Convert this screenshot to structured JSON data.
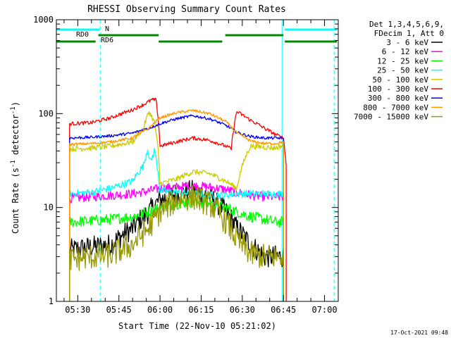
{
  "chart_data": {
    "type": "line",
    "title": "RHESSI Observing Summary Count Rates",
    "xlabel": "Start Time (22-Nov-10 05:21:02)",
    "ylabel_main": "Count Rate (s",
    "ylabel_sup1": "-1",
    "ylabel_mid": " detector",
    "ylabel_sup2": "-1",
    "ylabel_end": ")",
    "y_scale": "log",
    "ylim": [
      1,
      1000
    ],
    "yticks": [
      {
        "value": 1,
        "label": "1"
      },
      {
        "value": 10,
        "label": "10"
      },
      {
        "value": 100,
        "label": "100"
      },
      {
        "value": 1000,
        "label": "1000"
      }
    ],
    "xlim_minutes": [
      322.2,
      425.0
    ],
    "xticks": [
      {
        "value": 330,
        "label": "05:30"
      },
      {
        "value": 345,
        "label": "05:45"
      },
      {
        "value": 360,
        "label": "06:00"
      },
      {
        "value": 375,
        "label": "06:15"
      },
      {
        "value": 390,
        "label": "06:30"
      },
      {
        "value": 405,
        "label": "06:45"
      },
      {
        "value": 420,
        "label": "07:00"
      }
    ],
    "legend_title_lines": [
      "Det 1,3,4,5,6,9,",
      "FDecim 1, Att 0"
    ],
    "legend_position": "top-right outside",
    "series": [
      {
        "name": "3 - 6 keV",
        "color": "#000000",
        "x": [
          327,
          335,
          342,
          350,
          356,
          360,
          366,
          372,
          378,
          384,
          388,
          393,
          398,
          402,
          405
        ],
        "y": [
          3.5,
          3.8,
          4,
          6,
          9,
          12,
          14,
          15,
          13,
          9,
          6,
          4,
          3,
          3,
          3
        ]
      },
      {
        "name": "6 - 12 keV",
        "color": "#ff00ff",
        "x": [
          327,
          335,
          342,
          350,
          356,
          360,
          366,
          372,
          378,
          384,
          388,
          393,
          398,
          402,
          405
        ],
        "y": [
          12.5,
          13,
          13.5,
          14,
          15,
          16,
          16.5,
          17,
          16.5,
          15.5,
          14.5,
          13.5,
          13,
          13,
          13
        ]
      },
      {
        "name": "12 - 25 keV",
        "color": "#00ff00",
        "x": [
          327,
          335,
          342,
          350,
          356,
          360,
          366,
          372,
          378,
          384,
          388,
          393,
          398,
          402,
          405
        ],
        "y": [
          7,
          7.2,
          7.5,
          8,
          9,
          10,
          11,
          11.5,
          11,
          10,
          9,
          8,
          7.5,
          7,
          7
        ]
      },
      {
        "name": "25 - 50 keV",
        "color": "#00ffff",
        "x": [
          327,
          335,
          342,
          350,
          354,
          355.5,
          356.5,
          358,
          360,
          366,
          372,
          378,
          384,
          388,
          393,
          398,
          402,
          405
        ],
        "y": [
          14,
          14.5,
          16,
          19,
          28,
          42,
          30,
          40,
          15,
          14.5,
          14,
          13.5,
          13.5,
          14,
          14,
          14,
          14,
          14
        ]
      },
      {
        "name": "50 - 100 keV",
        "color": "#cccc00",
        "x": [
          327,
          335,
          342,
          350,
          354,
          356,
          358,
          360,
          366,
          372,
          378,
          384,
          388,
          393,
          398,
          402,
          405
        ],
        "y": [
          42,
          43,
          45,
          50,
          70,
          105,
          80,
          18,
          20,
          24,
          23,
          19,
          16,
          45,
          44,
          43,
          46
        ]
      },
      {
        "name": "100 - 300 keV",
        "color": "#ff0000",
        "x": [
          327,
          335,
          342,
          350,
          354,
          357,
          358.5,
          360,
          366,
          372,
          378,
          384,
          386,
          388,
          393,
          398,
          402,
          405,
          406
        ],
        "y": [
          78,
          80,
          90,
          110,
          125,
          140,
          140,
          45,
          50,
          55,
          52,
          45,
          42,
          105,
          85,
          70,
          60,
          55,
          28
        ]
      },
      {
        "name": "300 - 800 keV",
        "color": "#0000ff",
        "x": [
          327,
          335,
          342,
          350,
          356,
          360,
          366,
          372,
          378,
          384,
          388,
          393,
          398,
          402,
          405
        ],
        "y": [
          55,
          56,
          58,
          62,
          70,
          78,
          88,
          95,
          88,
          75,
          63,
          57,
          55,
          55,
          55
        ]
      },
      {
        "name": "800 - 7000 keV",
        "color": "#ff9900",
        "x": [
          327,
          335,
          342,
          350,
          356,
          360,
          366,
          372,
          378,
          384,
          388,
          393,
          398,
          402,
          405
        ],
        "y": [
          47,
          48,
          50,
          55,
          70,
          90,
          102,
          108,
          100,
          82,
          62,
          51,
          48,
          48,
          50
        ]
      },
      {
        "name": "7000 - 15000 keV",
        "color": "#999900",
        "x": [
          327,
          335,
          342,
          350,
          356,
          360,
          366,
          372,
          378,
          384,
          388,
          393,
          398,
          402,
          405
        ],
        "y": [
          2.8,
          3,
          3.1,
          4,
          6,
          9,
          12,
          13,
          11,
          7,
          4.5,
          3.2,
          3,
          3,
          3
        ]
      }
    ],
    "vlines": [
      {
        "x": 322.2,
        "color": "#00ffff",
        "style": "solid"
      },
      {
        "x": 338.2,
        "color": "#00ffff",
        "style": "dashed"
      },
      {
        "x": 404.5,
        "color": "#00ffff",
        "style": "solid"
      },
      {
        "x": 423.5,
        "color": "#00ffff",
        "style": "dashed"
      }
    ],
    "flag_bars": [
      {
        "label": "N",
        "color": "#00ffff",
        "segments": [
          [
            322.2,
            338.0
          ],
          [
            405.5,
            424.5
          ]
        ]
      },
      {
        "label": "RD0",
        "color": "#008800",
        "segments": [
          [
            337.5,
            359.5
          ],
          [
            383.8,
            405.0
          ]
        ]
      },
      {
        "label": "RD6",
        "color": "#008800",
        "segments": [
          [
            322.2,
            336.5
          ],
          [
            359.5,
            382.7
          ],
          [
            405.5,
            424.5
          ]
        ]
      }
    ],
    "timestamp": "17-Oct-2021 09:48"
  }
}
